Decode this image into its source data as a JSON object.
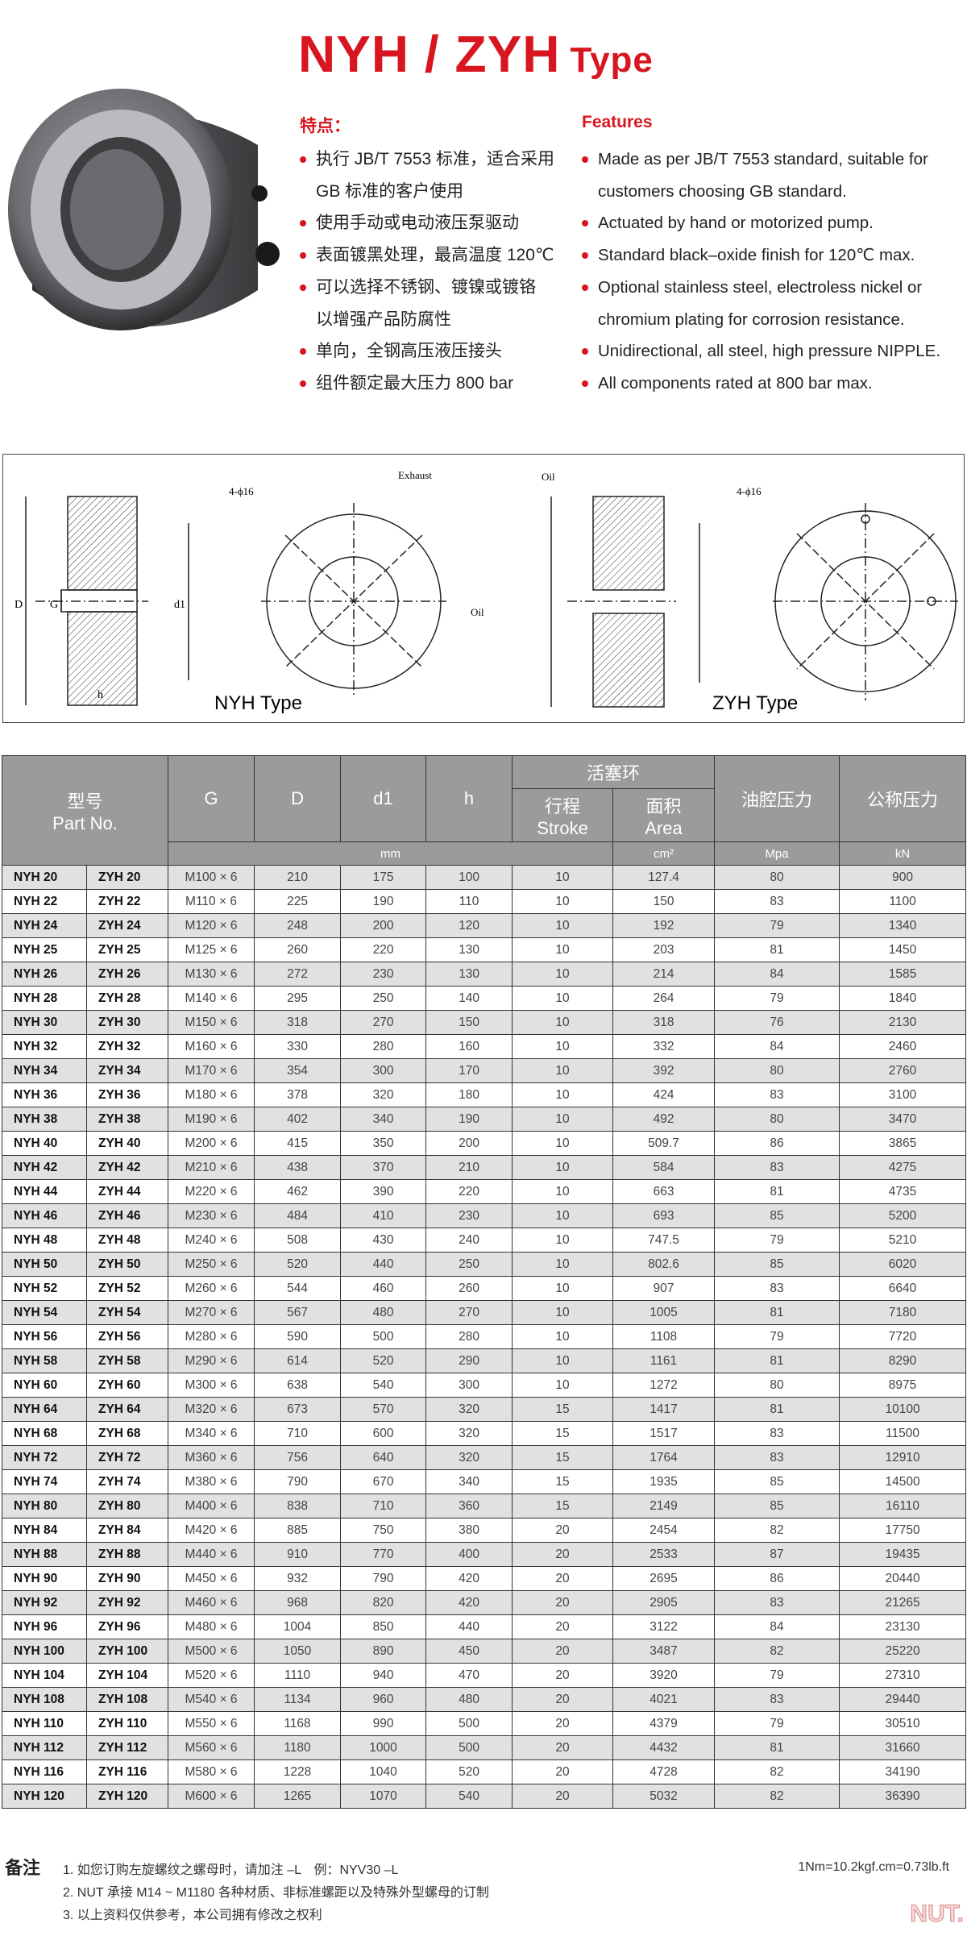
{
  "title": {
    "main": "NYH / ZYH",
    "suffix": "Type"
  },
  "features_cn": {
    "heading": "特点：",
    "items": [
      "执行 JB/T 7553 标准，适合采用",
      "GB 标准的客户使用",
      "使用手动或电动液压泵驱动",
      "表面镀黑处理，最高温度 120℃",
      "可以选择不锈钢、镀镍或镀铬",
      "以增强产品防腐性",
      "单向，全钢高压液压接头",
      "组件额定最大压力 800 bar"
    ]
  },
  "features_en": {
    "heading": "Features",
    "items": [
      "Made as per JB/T 7553 standard, suitable for",
      "customers choosing GB standard.",
      "Actuated by hand or motorized pump.",
      "Standard black–oxide finish for 120℃ max.",
      "Optional stainless steel, electroless nickel or",
      "chromium plating for corrosion resistance.",
      "Unidirectional, all steel, high pressure NIPPLE.",
      "All components rated at 800 bar max."
    ]
  },
  "bullet_color": "#d7161f",
  "accent_color": "#d7161f",
  "drawings": {
    "nyh_label": "NYH Type",
    "zyh_label": "ZYH Type",
    "dim_D": "D",
    "dim_G": "G",
    "dim_d1": "d1",
    "dim_h": "h",
    "holes": "4-ϕ16",
    "exhaust": "Exhaust",
    "oil": "Oil"
  },
  "table": {
    "header": {
      "part_cn": "型号",
      "part_en": "Part No.",
      "G": "G",
      "D": "D",
      "d1": "d1",
      "h": "h",
      "piston_cn": "活塞环",
      "stroke_cn": "行程",
      "stroke_en": "Stroke",
      "area_cn": "面积",
      "area_en": "Area",
      "oil_pressure_cn": "油腔压力",
      "nominal_force_cn": "公称压力",
      "unit_mm": "mm",
      "unit_area": "cm²",
      "unit_pressure": "Mpa",
      "unit_force": "kN"
    },
    "rows": [
      [
        "NYH 20",
        "ZYH 20",
        "M100 × 6",
        "210",
        "175",
        "100",
        "10",
        "127.4",
        "80",
        "900"
      ],
      [
        "NYH 22",
        "ZYH 22",
        "M110 × 6",
        "225",
        "190",
        "110",
        "10",
        "150",
        "83",
        "1100"
      ],
      [
        "NYH 24",
        "ZYH 24",
        "M120 × 6",
        "248",
        "200",
        "120",
        "10",
        "192",
        "79",
        "1340"
      ],
      [
        "NYH 25",
        "ZYH 25",
        "M125 × 6",
        "260",
        "220",
        "130",
        "10",
        "203",
        "81",
        "1450"
      ],
      [
        "NYH 26",
        "ZYH 26",
        "M130 × 6",
        "272",
        "230",
        "130",
        "10",
        "214",
        "84",
        "1585"
      ],
      [
        "NYH 28",
        "ZYH 28",
        "M140 × 6",
        "295",
        "250",
        "140",
        "10",
        "264",
        "79",
        "1840"
      ],
      [
        "NYH 30",
        "ZYH 30",
        "M150 × 6",
        "318",
        "270",
        "150",
        "10",
        "318",
        "76",
        "2130"
      ],
      [
        "NYH 32",
        "ZYH 32",
        "M160 × 6",
        "330",
        "280",
        "160",
        "10",
        "332",
        "84",
        "2460"
      ],
      [
        "NYH 34",
        "ZYH 34",
        "M170 × 6",
        "354",
        "300",
        "170",
        "10",
        "392",
        "80",
        "2760"
      ],
      [
        "NYH 36",
        "ZYH 36",
        "M180 × 6",
        "378",
        "320",
        "180",
        "10",
        "424",
        "83",
        "3100"
      ],
      [
        "NYH 38",
        "ZYH 38",
        "M190 × 6",
        "402",
        "340",
        "190",
        "10",
        "492",
        "80",
        "3470"
      ],
      [
        "NYH 40",
        "ZYH 40",
        "M200 × 6",
        "415",
        "350",
        "200",
        "10",
        "509.7",
        "86",
        "3865"
      ],
      [
        "NYH 42",
        "ZYH 42",
        "M210 × 6",
        "438",
        "370",
        "210",
        "10",
        "584",
        "83",
        "4275"
      ],
      [
        "NYH 44",
        "ZYH 44",
        "M220 × 6",
        "462",
        "390",
        "220",
        "10",
        "663",
        "81",
        "4735"
      ],
      [
        "NYH 46",
        "ZYH 46",
        "M230 × 6",
        "484",
        "410",
        "230",
        "10",
        "693",
        "85",
        "5200"
      ],
      [
        "NYH 48",
        "ZYH 48",
        "M240 × 6",
        "508",
        "430",
        "240",
        "10",
        "747.5",
        "79",
        "5210"
      ],
      [
        "NYH 50",
        "ZYH 50",
        "M250 × 6",
        "520",
        "440",
        "250",
        "10",
        "802.6",
        "85",
        "6020"
      ],
      [
        "NYH 52",
        "ZYH 52",
        "M260 × 6",
        "544",
        "460",
        "260",
        "10",
        "907",
        "83",
        "6640"
      ],
      [
        "NYH 54",
        "ZYH 54",
        "M270 × 6",
        "567",
        "480",
        "270",
        "10",
        "1005",
        "81",
        "7180"
      ],
      [
        "NYH 56",
        "ZYH 56",
        "M280 × 6",
        "590",
        "500",
        "280",
        "10",
        "1108",
        "79",
        "7720"
      ],
      [
        "NYH 58",
        "ZYH 58",
        "M290 × 6",
        "614",
        "520",
        "290",
        "10",
        "1161",
        "81",
        "8290"
      ],
      [
        "NYH 60",
        "ZYH 60",
        "M300 × 6",
        "638",
        "540",
        "300",
        "10",
        "1272",
        "80",
        "8975"
      ],
      [
        "NYH 64",
        "ZYH 64",
        "M320 × 6",
        "673",
        "570",
        "320",
        "15",
        "1417",
        "81",
        "10100"
      ],
      [
        "NYH 68",
        "ZYH 68",
        "M340 × 6",
        "710",
        "600",
        "320",
        "15",
        "1517",
        "83",
        "11500"
      ],
      [
        "NYH 72",
        "ZYH 72",
        "M360 × 6",
        "756",
        "640",
        "320",
        "15",
        "1764",
        "83",
        "12910"
      ],
      [
        "NYH 74",
        "ZYH 74",
        "M380 × 6",
        "790",
        "670",
        "340",
        "15",
        "1935",
        "85",
        "14500"
      ],
      [
        "NYH 80",
        "ZYH 80",
        "M400 × 6",
        "838",
        "710",
        "360",
        "15",
        "2149",
        "85",
        "16110"
      ],
      [
        "NYH 84",
        "ZYH 84",
        "M420 × 6",
        "885",
        "750",
        "380",
        "20",
        "2454",
        "82",
        "17750"
      ],
      [
        "NYH 88",
        "ZYH 88",
        "M440 × 6",
        "910",
        "770",
        "400",
        "20",
        "2533",
        "87",
        "19435"
      ],
      [
        "NYH 90",
        "ZYH 90",
        "M450 × 6",
        "932",
        "790",
        "420",
        "20",
        "2695",
        "86",
        "20440"
      ],
      [
        "NYH 92",
        "ZYH 92",
        "M460 × 6",
        "968",
        "820",
        "420",
        "20",
        "2905",
        "83",
        "21265"
      ],
      [
        "NYH 96",
        "ZYH 96",
        "M480 × 6",
        "1004",
        "850",
        "440",
        "20",
        "3122",
        "84",
        "23130"
      ],
      [
        "NYH 100",
        "ZYH 100",
        "M500 × 6",
        "1050",
        "890",
        "450",
        "20",
        "3487",
        "82",
        "25220"
      ],
      [
        "NYH 104",
        "ZYH 104",
        "M520 × 6",
        "1110",
        "940",
        "470",
        "20",
        "3920",
        "79",
        "27310"
      ],
      [
        "NYH 108",
        "ZYH 108",
        "M540 × 6",
        "1134",
        "960",
        "480",
        "20",
        "4021",
        "83",
        "29440"
      ],
      [
        "NYH 110",
        "ZYH 110",
        "M550 × 6",
        "1168",
        "990",
        "500",
        "20",
        "4379",
        "79",
        "30510"
      ],
      [
        "NYH 112",
        "ZYH 112",
        "M560 × 6",
        "1180",
        "1000",
        "500",
        "20",
        "4432",
        "81",
        "31660"
      ],
      [
        "NYH 116",
        "ZYH 116",
        "M580 × 6",
        "1228",
        "1040",
        "520",
        "20",
        "4728",
        "82",
        "34190"
      ],
      [
        "NYH 120",
        "ZYH 120",
        "M600 × 6",
        "1265",
        "1070",
        "540",
        "20",
        "5032",
        "82",
        "36390"
      ]
    ]
  },
  "notes": {
    "label": "备注",
    "items": [
      "1. 如您订购左旋螺纹之螺母时，请加注 –L　例：NYV30 –L",
      "2. NUT 承接 M14 ~ M1180 各种材质、非标准螺距以及特殊外型螺母的订制",
      "3. 以上资料仅供参考，本公司拥有修改之权利"
    ],
    "conversion": "1Nm=10.2kgf.cm=0.73lb.ft"
  },
  "watermark": "NUT."
}
